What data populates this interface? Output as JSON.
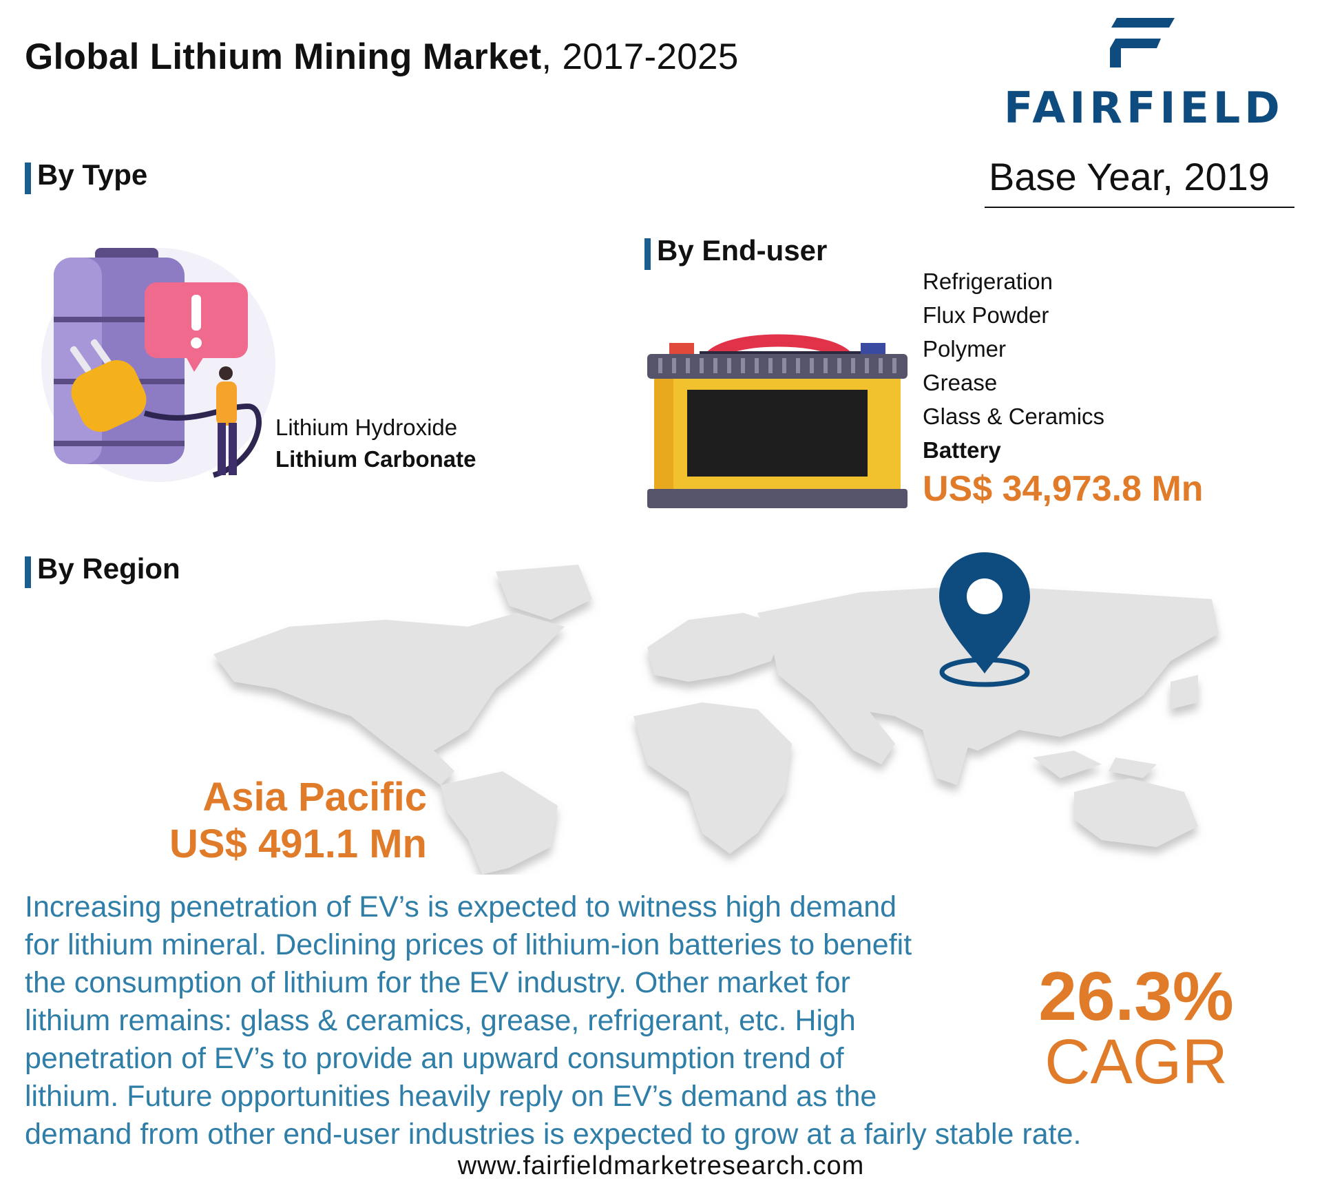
{
  "header": {
    "title_bold": "Global Lithium Mining Market",
    "title_rest": ", 2017-2025",
    "logo_text": "FAIRFIELD",
    "base_year": "Base Year, 2019"
  },
  "by_type": {
    "heading": "By Type",
    "items": [
      "Lithium Hydroxide",
      "Lithium Carbonate"
    ]
  },
  "by_end_user": {
    "heading": "By End-user",
    "items": [
      "Refrigeration",
      "Flux Powder",
      "Polymer",
      "Grease",
      "Glass & Ceramics",
      "Battery"
    ],
    "value": "US$ 34,973.8 Mn"
  },
  "by_region": {
    "heading": "By Region",
    "region": "Asia Pacific",
    "value": "US$ 491.1 Mn"
  },
  "summary": {
    "lines": [
      "Increasing penetration of EV’s is expected to witness high demand",
      "for lithium mineral. Declining prices of lithium-ion batteries to benefit",
      "the consumption of lithium for the EV industry. Other market for",
      "lithium remains: glass & ceramics, grease, refrigerant, etc. High",
      "penetration of EV’s to provide an upward consumption trend of",
      "lithium. Future opportunities heavily reply on EV’s demand as the",
      "demand from other end-user industries is expected to grow at a fairly stable rate."
    ]
  },
  "cagr": {
    "value": "26.3%",
    "label": "CAGR"
  },
  "footer": {
    "url": "www.fairfieldmarketresearch.com"
  },
  "colors": {
    "accent": "#e07b2a",
    "brand_blue": "#0e4b7f",
    "text_blue": "#2f7ea8"
  },
  "icons": [
    "battery-warning-illustration",
    "car-battery-illustration",
    "world-map-illustration",
    "location-pin-icon"
  ]
}
